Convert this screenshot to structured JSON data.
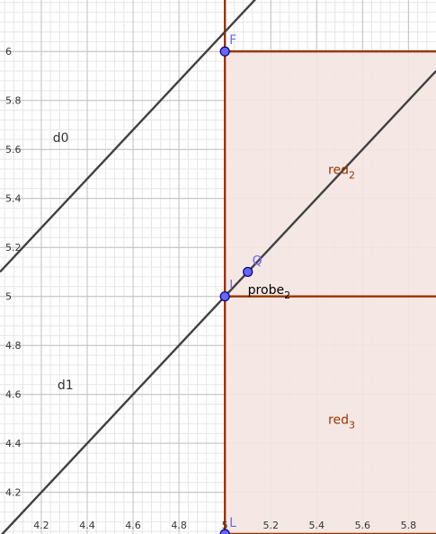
{
  "graphics_view": {
    "x_axis": {
      "min": 4.02,
      "max": 5.92,
      "tick_step": 0.2,
      "minor_step": 0.04,
      "tick_labels": [
        "4.2",
        "4.4",
        "4.6",
        "4.8",
        "5",
        "5.2",
        "5.4",
        "5.6",
        "5.8"
      ]
    },
    "y_axis": {
      "min": 4.03,
      "max": 6.21,
      "tick_step": 0.2,
      "minor_step": 0.04,
      "tick_labels": [
        "4.2",
        "4.4",
        "4.6",
        "4.8",
        "5",
        "5.2",
        "5.4",
        "5.6",
        "5.8",
        "6"
      ]
    },
    "colors": {
      "grid_major": "#c0c0c0",
      "grid_minor": "#e6e6e6",
      "axis_text": "#333333",
      "line": "#404040",
      "region_fill": "#f4e6e1",
      "region_border": "#993300",
      "point_fill": "#6666ff",
      "point_stroke": "#000080",
      "point_label": "#6666ff"
    },
    "lines": [
      {
        "label": "d0",
        "slope": 1,
        "intercept": 1.08
      },
      {
        "label": "d1",
        "slope": 1,
        "intercept": 0
      }
    ],
    "regions": [
      {
        "label_main": "red",
        "label_sub": "2",
        "x_from": 5,
        "y_from": 5,
        "y_to": 6
      },
      {
        "label_main": "red",
        "label_sub": "3",
        "x_from": 5,
        "y_from": 4.03,
        "y_to": 5
      }
    ],
    "segments": [
      {
        "x1": 5,
        "y1": 6,
        "x2": 5.92,
        "y2": 6
      },
      {
        "x1": 5,
        "y1": 5,
        "x2": 5.92,
        "y2": 5
      },
      {
        "x1": 5,
        "y1": 4.03,
        "x2": 5.92,
        "y2": 4.03
      },
      {
        "x1": 5,
        "y1": 4.03,
        "x2": 5,
        "y2": 6.21
      }
    ],
    "points": [
      {
        "label": "F",
        "x": 5,
        "y": 6
      },
      {
        "label": "I",
        "x": 5,
        "y": 5
      },
      {
        "label": "Q",
        "x": 5.1,
        "y": 5.1
      },
      {
        "label": "L",
        "x": 5,
        "y": 4.03
      }
    ],
    "text_labels": [
      {
        "main": "d0",
        "sub": "",
        "x": 4.25,
        "y": 5.63,
        "color": "#333333"
      },
      {
        "main": "d1",
        "sub": "",
        "x": 4.27,
        "y": 4.62,
        "color": "#333333"
      },
      {
        "main": "probe",
        "sub": "2",
        "x": 5.1,
        "y": 5.01,
        "color": "#000000"
      },
      {
        "main": "red",
        "sub": "2",
        "x": 5.45,
        "y": 5.5,
        "color": "#993300"
      },
      {
        "main": "red",
        "sub": "3",
        "x": 5.45,
        "y": 4.48,
        "color": "#993300"
      }
    ]
  }
}
